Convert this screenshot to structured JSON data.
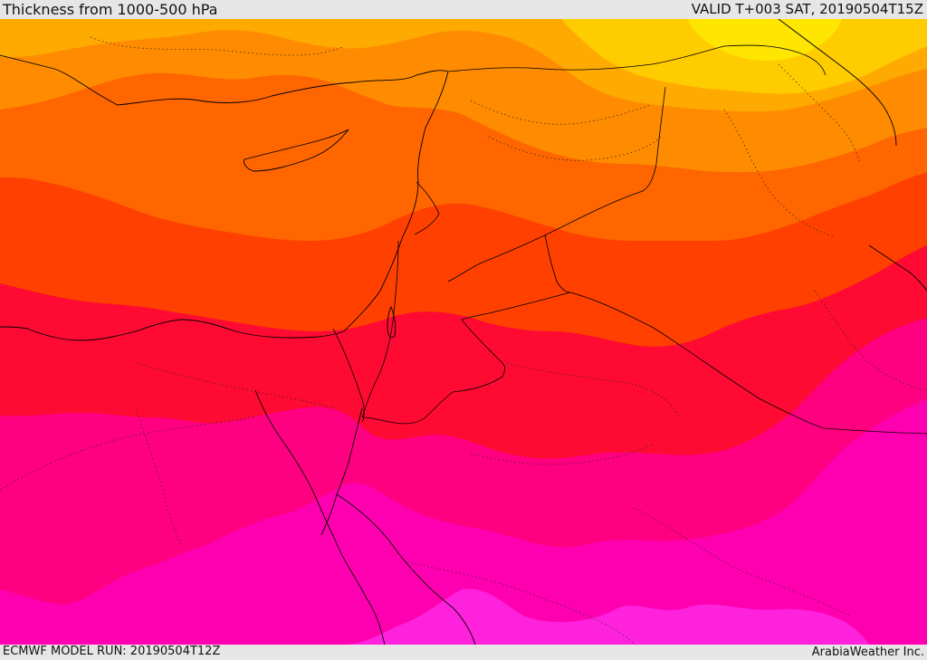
{
  "header": {
    "title": "Thickness from 1000-500 hPa",
    "valid": "VALID T+003 SAT, 20190504T15Z"
  },
  "footer": {
    "model_run": "ECMWF MODEL RUN: 20190504T12Z",
    "credit": "ArabiaWeather Inc."
  },
  "colors": {
    "yellow": "#ffe600",
    "gold": "#ffcc00",
    "light_orange": "#ffaa00",
    "orange": "#ff8c00",
    "dark_orange": "#ff6600",
    "red_orange": "#ff4000",
    "red": "#ff0a33",
    "crimson": "#ff0055",
    "magenta": "#ff0080",
    "pink": "#ff00b0",
    "light_pink": "#ff22dd"
  }
}
